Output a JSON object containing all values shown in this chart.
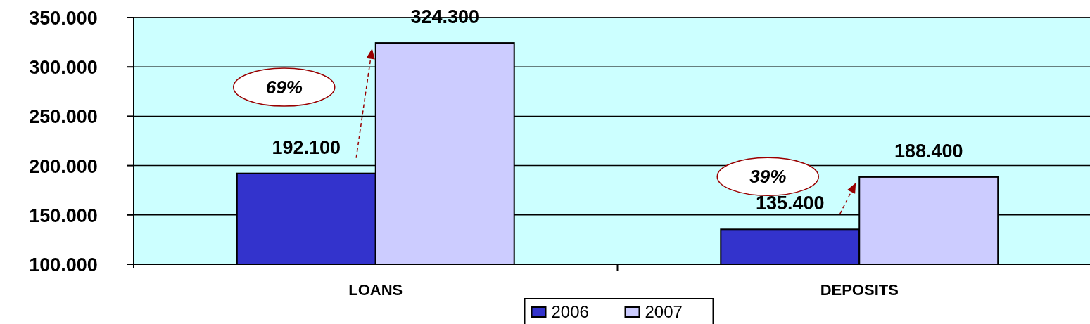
{
  "chart_data": {
    "type": "bar",
    "categories": [
      "LOANS",
      "DEPOSITS"
    ],
    "series": [
      {
        "name": "2006",
        "color": "#3333cc",
        "values": [
          192100,
          135400
        ],
        "value_labels": [
          "192.100",
          "135.400"
        ]
      },
      {
        "name": "2007",
        "color": "#ccccff",
        "values": [
          324300,
          188400
        ],
        "value_labels": [
          "324.300",
          "188.400"
        ]
      }
    ],
    "ylim": [
      100000,
      350000
    ],
    "yticks": [
      {
        "value": 100000,
        "label": "100.000"
      },
      {
        "value": 150000,
        "label": "150.000"
      },
      {
        "value": 200000,
        "label": "200.000"
      },
      {
        "value": 250000,
        "label": "250.000"
      },
      {
        "value": 300000,
        "label": "300.000"
      },
      {
        "value": 350000,
        "label": "350.000"
      }
    ],
    "grid": "y",
    "legend": "bottom",
    "annotations": [
      "69%",
      "39%"
    ]
  }
}
